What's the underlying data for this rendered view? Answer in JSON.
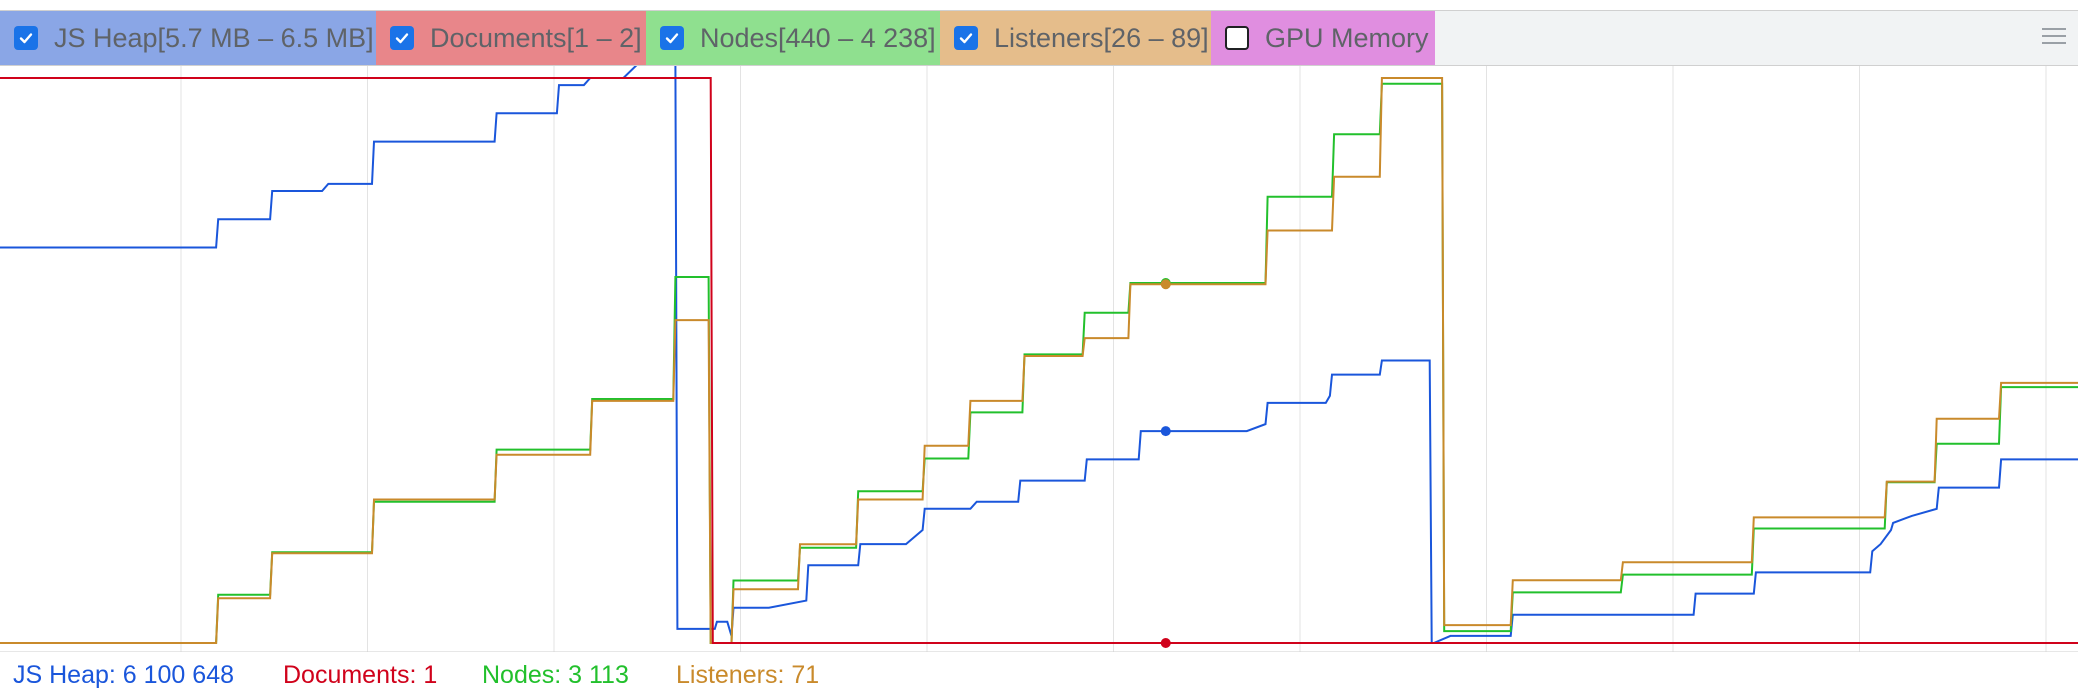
{
  "legend": [
    {
      "label": "JS Heap[5.7 MB – 6.5 MB]",
      "checked": true,
      "color": "#8aa6e6"
    },
    {
      "label": "Documents[1 – 2]",
      "checked": true,
      "color": "#e8868a"
    },
    {
      "label": "Nodes[440 – 4 238]",
      "checked": true,
      "color": "#8fe08f"
    },
    {
      "label": "Listeners[26 – 89]",
      "checked": true,
      "color": "#e5bd8b"
    },
    {
      "label": "GPU Memory",
      "checked": false,
      "color": "#e08ee0"
    }
  ],
  "status": {
    "js_heap": "JS Heap: 6 100 648",
    "documents": "Documents: 1",
    "nodes": "Nodes: 3 113",
    "listeners": "Listeners: 71"
  },
  "colors": {
    "js_heap": "#1a56db",
    "documents": "#d0021b",
    "nodes": "#22c02c",
    "listeners": "#c98a2b"
  },
  "chart_data": {
    "type": "line",
    "title": "",
    "xlabel": "",
    "ylabel": "",
    "x_unit": "sample index (0–1000)",
    "cursor_x": 561,
    "series": [
      {
        "name": "JS Heap",
        "unit": "MB",
        "ylim": [
          5.7,
          6.5
        ],
        "points": [
          [
            0,
            6.26
          ],
          [
            104,
            6.26
          ],
          [
            105,
            6.3
          ],
          [
            130,
            6.3
          ],
          [
            131,
            6.34
          ],
          [
            155,
            6.34
          ],
          [
            158,
            6.35
          ],
          [
            179,
            6.35
          ],
          [
            180,
            6.41
          ],
          [
            238,
            6.41
          ],
          [
            239,
            6.45
          ],
          [
            268,
            6.45
          ],
          [
            269,
            6.49
          ],
          [
            281,
            6.49
          ],
          [
            284,
            6.5
          ],
          [
            300,
            6.5
          ],
          [
            307,
            6.52
          ],
          [
            325,
            6.52
          ],
          [
            326,
            5.72
          ],
          [
            344,
            5.72
          ],
          [
            345,
            5.73
          ],
          [
            350,
            5.73
          ],
          [
            352,
            5.71
          ],
          [
            353,
            5.75
          ],
          [
            370,
            5.75
          ],
          [
            388,
            5.76
          ],
          [
            389,
            5.81
          ],
          [
            413,
            5.81
          ],
          [
            414,
            5.84
          ],
          [
            436,
            5.84
          ],
          [
            444,
            5.86
          ],
          [
            445,
            5.89
          ],
          [
            467,
            5.89
          ],
          [
            470,
            5.9
          ],
          [
            490,
            5.9
          ],
          [
            491,
            5.93
          ],
          [
            522,
            5.93
          ],
          [
            523,
            5.96
          ],
          [
            548,
            5.96
          ],
          [
            549,
            6.0
          ],
          [
            561,
            6.0
          ],
          [
            600,
            6.0
          ],
          [
            609,
            6.01
          ],
          [
            610,
            6.04
          ],
          [
            638,
            6.04
          ],
          [
            640,
            6.05
          ],
          [
            641,
            6.08
          ],
          [
            664,
            6.08
          ],
          [
            665,
            6.1
          ],
          [
            688,
            6.1
          ],
          [
            689,
            5.7
          ],
          [
            690,
            5.7
          ],
          [
            698,
            5.71
          ],
          [
            727,
            5.71
          ],
          [
            728,
            5.74
          ],
          [
            815,
            5.74
          ],
          [
            816,
            5.77
          ],
          [
            844,
            5.77
          ],
          [
            845,
            5.8
          ],
          [
            900,
            5.8
          ],
          [
            901,
            5.83
          ],
          [
            905,
            5.84
          ],
          [
            910,
            5.86
          ],
          [
            911,
            5.87
          ],
          [
            920,
            5.88
          ],
          [
            932,
            5.89
          ],
          [
            933,
            5.92
          ],
          [
            962,
            5.92
          ],
          [
            963,
            5.96
          ],
          [
            1000,
            5.96
          ]
        ]
      },
      {
        "name": "Documents",
        "unit": "count",
        "ylim": [
          1,
          2
        ],
        "points": [
          [
            0,
            2
          ],
          [
            342,
            2
          ],
          [
            343,
            1
          ],
          [
            1000,
            1
          ]
        ]
      },
      {
        "name": "Nodes",
        "unit": "count",
        "ylim": [
          440,
          4238
        ],
        "points": [
          [
            0,
            440
          ],
          [
            104,
            440
          ],
          [
            105,
            765
          ],
          [
            130,
            765
          ],
          [
            131,
            1050
          ],
          [
            179,
            1050
          ],
          [
            180,
            1390
          ],
          [
            238,
            1390
          ],
          [
            239,
            1740
          ],
          [
            284,
            1740
          ],
          [
            285,
            2080
          ],
          [
            324,
            2080
          ],
          [
            325,
            2900
          ],
          [
            341,
            2900
          ],
          [
            342,
            440
          ],
          [
            352,
            440
          ],
          [
            353,
            860
          ],
          [
            384,
            860
          ],
          [
            385,
            1080
          ],
          [
            412,
            1080
          ],
          [
            413,
            1460
          ],
          [
            444,
            1460
          ],
          [
            445,
            1680
          ],
          [
            466,
            1680
          ],
          [
            467,
            1990
          ],
          [
            492,
            1990
          ],
          [
            493,
            2380
          ],
          [
            521,
            2380
          ],
          [
            522,
            2660
          ],
          [
            543,
            2660
          ],
          [
            544,
            2860
          ],
          [
            561,
            2860
          ],
          [
            609,
            2860
          ],
          [
            610,
            3440
          ],
          [
            641,
            3440
          ],
          [
            642,
            3860
          ],
          [
            664,
            3860
          ],
          [
            665,
            4200
          ],
          [
            694,
            4200
          ],
          [
            695,
            520
          ],
          [
            727,
            520
          ],
          [
            728,
            780
          ],
          [
            780,
            780
          ],
          [
            781,
            900
          ],
          [
            843,
            900
          ],
          [
            844,
            1210
          ],
          [
            907,
            1210
          ],
          [
            908,
            1520
          ],
          [
            931,
            1520
          ],
          [
            932,
            1780
          ],
          [
            962,
            1780
          ],
          [
            963,
            2160
          ],
          [
            1000,
            2160
          ]
        ]
      },
      {
        "name": "Listeners",
        "unit": "count",
        "ylim": [
          26,
          89
        ],
        "points": [
          [
            0,
            26
          ],
          [
            104,
            26
          ],
          [
            105,
            31
          ],
          [
            130,
            31
          ],
          [
            131,
            36
          ],
          [
            179,
            36
          ],
          [
            180,
            42
          ],
          [
            238,
            42
          ],
          [
            239,
            47
          ],
          [
            284,
            47
          ],
          [
            285,
            53
          ],
          [
            324,
            53
          ],
          [
            325,
            62
          ],
          [
            341,
            62
          ],
          [
            342,
            26
          ],
          [
            352,
            26
          ],
          [
            353,
            32
          ],
          [
            384,
            32
          ],
          [
            385,
            37
          ],
          [
            412,
            37
          ],
          [
            413,
            42
          ],
          [
            444,
            42
          ],
          [
            445,
            48
          ],
          [
            466,
            48
          ],
          [
            467,
            53
          ],
          [
            492,
            53
          ],
          [
            493,
            58
          ],
          [
            521,
            58
          ],
          [
            522,
            60
          ],
          [
            543,
            60
          ],
          [
            544,
            66
          ],
          [
            561,
            66
          ],
          [
            609,
            66
          ],
          [
            610,
            72
          ],
          [
            641,
            72
          ],
          [
            642,
            78
          ],
          [
            664,
            78
          ],
          [
            665,
            89
          ],
          [
            694,
            89
          ],
          [
            695,
            28
          ],
          [
            727,
            28
          ],
          [
            728,
            33
          ],
          [
            780,
            33
          ],
          [
            781,
            35
          ],
          [
            843,
            35
          ],
          [
            844,
            40
          ],
          [
            907,
            40
          ],
          [
            908,
            44
          ],
          [
            931,
            44
          ],
          [
            932,
            51
          ],
          [
            962,
            51
          ],
          [
            963,
            55
          ],
          [
            1000,
            55
          ]
        ]
      }
    ]
  }
}
